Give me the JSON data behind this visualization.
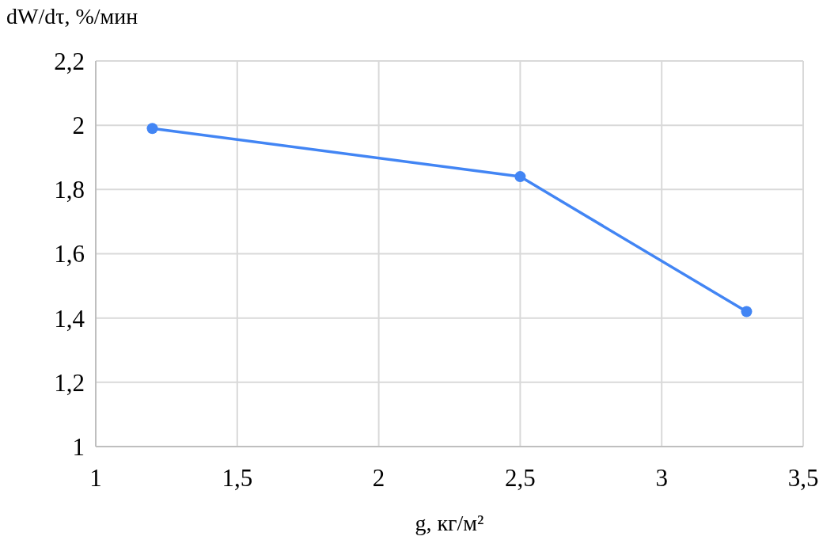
{
  "chart_data": {
    "type": "line",
    "ylabel": "dW/dτ, %/мин",
    "xlabel": "g, кг/м²",
    "x": [
      1.2,
      2.5,
      3.3
    ],
    "series": [
      {
        "color": "#4285f4",
        "values": [
          1.99,
          1.84,
          1.42
        ]
      }
    ],
    "xlim": [
      1,
      3.5
    ],
    "xticks": [
      {
        "value": 1,
        "label": "1"
      },
      {
        "value": 1.5,
        "label": "1,5"
      },
      {
        "value": 2,
        "label": "2"
      },
      {
        "value": 2.5,
        "label": "2,5"
      },
      {
        "value": 3,
        "label": "3"
      },
      {
        "value": 3.5,
        "label": "3,5"
      }
    ],
    "ylim": [
      1,
      2.2
    ],
    "yticks": [
      {
        "value": 1,
        "label": "1"
      },
      {
        "value": 1.2,
        "label": "1,2"
      },
      {
        "value": 1.4,
        "label": "1,4"
      },
      {
        "value": 1.6,
        "label": "1,6"
      },
      {
        "value": 1.8,
        "label": "1,8"
      },
      {
        "value": 2,
        "label": "2"
      },
      {
        "value": 2.2,
        "label": "2,2"
      }
    ],
    "grid": true,
    "marker": "circle",
    "line_style": "solid"
  }
}
